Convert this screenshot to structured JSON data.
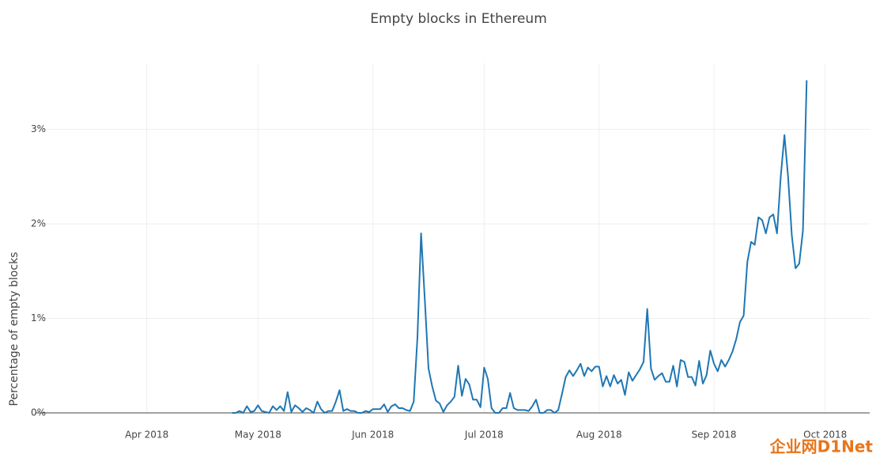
{
  "chart_data": {
    "type": "line",
    "title": "Empty blocks in Ethereum",
    "y_label": "Percentage of empty blocks",
    "watermark": "企业网D1Net",
    "color": "#1f77b4",
    "grid": true,
    "xlim": [
      "2018-03-02",
      "2018-10-13"
    ],
    "xticks": [
      {
        "value": "2018-04-01",
        "label": "Apr 2018"
      },
      {
        "value": "2018-05-01",
        "label": "May 2018"
      },
      {
        "value": "2018-06-01",
        "label": "Jun 2018"
      },
      {
        "value": "2018-07-01",
        "label": "Jul 2018"
      },
      {
        "value": "2018-08-01",
        "label": "Aug 2018"
      },
      {
        "value": "2018-09-01",
        "label": "Sep 2018"
      },
      {
        "value": "2018-10-01",
        "label": "Oct 2018"
      }
    ],
    "ylim": [
      0,
      3.7
    ],
    "yticks": [
      {
        "value": 0,
        "label": "0%"
      },
      {
        "value": 1,
        "label": "1%"
      },
      {
        "value": 2,
        "label": "2%"
      },
      {
        "value": 3,
        "label": "3%"
      }
    ],
    "x": [
      "2018-04-24",
      "2018-04-25",
      "2018-04-26",
      "2018-04-27",
      "2018-04-28",
      "2018-04-29",
      "2018-04-30",
      "2018-05-01",
      "2018-05-02",
      "2018-05-03",
      "2018-05-04",
      "2018-05-05",
      "2018-05-06",
      "2018-05-07",
      "2018-05-08",
      "2018-05-09",
      "2018-05-10",
      "2018-05-11",
      "2018-05-12",
      "2018-05-13",
      "2018-05-14",
      "2018-05-15",
      "2018-05-16",
      "2018-05-17",
      "2018-05-18",
      "2018-05-19",
      "2018-05-20",
      "2018-05-21",
      "2018-05-22",
      "2018-05-23",
      "2018-05-24",
      "2018-05-25",
      "2018-05-26",
      "2018-05-27",
      "2018-05-28",
      "2018-05-29",
      "2018-05-30",
      "2018-05-31",
      "2018-06-01",
      "2018-06-02",
      "2018-06-03",
      "2018-06-04",
      "2018-06-05",
      "2018-06-06",
      "2018-06-07",
      "2018-06-08",
      "2018-06-09",
      "2018-06-10",
      "2018-06-11",
      "2018-06-12",
      "2018-06-13",
      "2018-06-14",
      "2018-06-15",
      "2018-06-16",
      "2018-06-17",
      "2018-06-18",
      "2018-06-19",
      "2018-06-20",
      "2018-06-21",
      "2018-06-22",
      "2018-06-23",
      "2018-06-24",
      "2018-06-25",
      "2018-06-26",
      "2018-06-27",
      "2018-06-28",
      "2018-06-29",
      "2018-06-30",
      "2018-07-01",
      "2018-07-02",
      "2018-07-03",
      "2018-07-04",
      "2018-07-05",
      "2018-07-06",
      "2018-07-07",
      "2018-07-08",
      "2018-07-09",
      "2018-07-10",
      "2018-07-11",
      "2018-07-12",
      "2018-07-13",
      "2018-07-14",
      "2018-07-15",
      "2018-07-16",
      "2018-07-17",
      "2018-07-18",
      "2018-07-19",
      "2018-07-20",
      "2018-07-21",
      "2018-07-22",
      "2018-07-23",
      "2018-07-24",
      "2018-07-25",
      "2018-07-26",
      "2018-07-27",
      "2018-07-28",
      "2018-07-29",
      "2018-07-30",
      "2018-07-31",
      "2018-08-01",
      "2018-08-02",
      "2018-08-03",
      "2018-08-04",
      "2018-08-05",
      "2018-08-06",
      "2018-08-07",
      "2018-08-08",
      "2018-08-09",
      "2018-08-10",
      "2018-08-11",
      "2018-08-12",
      "2018-08-13",
      "2018-08-14",
      "2018-08-15",
      "2018-08-16",
      "2018-08-17",
      "2018-08-18",
      "2018-08-19",
      "2018-08-20",
      "2018-08-21",
      "2018-08-22",
      "2018-08-23",
      "2018-08-24",
      "2018-08-25",
      "2018-08-26",
      "2018-08-27",
      "2018-08-28",
      "2018-08-29",
      "2018-08-30",
      "2018-08-31",
      "2018-09-01",
      "2018-09-02",
      "2018-09-03",
      "2018-09-04",
      "2018-09-05",
      "2018-09-06",
      "2018-09-07",
      "2018-09-08",
      "2018-09-09",
      "2018-09-10",
      "2018-09-11",
      "2018-09-12",
      "2018-09-13",
      "2018-09-14",
      "2018-09-15",
      "2018-09-16",
      "2018-09-17",
      "2018-09-18",
      "2018-09-19",
      "2018-09-20",
      "2018-09-21",
      "2018-09-22",
      "2018-09-23",
      "2018-09-24",
      "2018-09-25",
      "2018-09-26"
    ],
    "values": [
      0,
      0,
      0.02,
      0,
      0.07,
      0.01,
      0.02,
      0.08,
      0.02,
      0.01,
      0,
      0.07,
      0.03,
      0.07,
      0.02,
      0.22,
      0.01,
      0.08,
      0.05,
      0.01,
      0.05,
      0.03,
      0,
      0.12,
      0.04,
      0,
      0.02,
      0.02,
      0.12,
      0.24,
      0.02,
      0.04,
      0.02,
      0.02,
      0,
      0,
      0.02,
      0.01,
      0.04,
      0.04,
      0.04,
      0.09,
      0.01,
      0.07,
      0.09,
      0.05,
      0.05,
      0.03,
      0.02,
      0.12,
      0.8,
      1.9,
      1.2,
      0.47,
      0.28,
      0.13,
      0.1,
      0.01,
      0.08,
      0.12,
      0.17,
      0.5,
      0.18,
      0.36,
      0.3,
      0.14,
      0.14,
      0.06,
      0.48,
      0.36,
      0.05,
      0,
      0,
      0.05,
      0.05,
      0.21,
      0.05,
      0.03,
      0.03,
      0.03,
      0.02,
      0.07,
      0.14,
      0,
      0,
      0.03,
      0.03,
      0,
      0.03,
      0.2,
      0.38,
      0.45,
      0.39,
      0.45,
      0.52,
      0.39,
      0.48,
      0.44,
      0.49,
      0.49,
      0.28,
      0.39,
      0.28,
      0.4,
      0.31,
      0.35,
      0.19,
      0.43,
      0.34,
      0.4,
      0.46,
      0.54,
      1.1,
      0.47,
      0.35,
      0.39,
      0.42,
      0.33,
      0.33,
      0.5,
      0.28,
      0.56,
      0.54,
      0.38,
      0.38,
      0.29,
      0.55,
      0.31,
      0.4,
      0.66,
      0.52,
      0.44,
      0.56,
      0.49,
      0.56,
      0.65,
      0.78,
      0.96,
      1.03,
      1.6,
      1.81,
      1.78,
      2.07,
      2.04,
      1.9,
      2.07,
      2.1,
      1.9,
      2.5,
      2.94,
      2.5,
      1.88,
      1.53,
      1.58,
      1.93,
      3.52
    ]
  }
}
